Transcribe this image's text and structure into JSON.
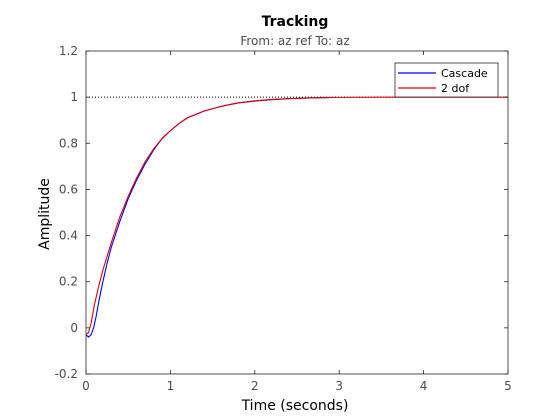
{
  "chart_data": {
    "type": "line",
    "title": "Tracking",
    "subtitle": "From: az ref  To: az",
    "xlabel": "Time (seconds)",
    "ylabel": "Amplitude",
    "xlim": [
      0,
      5
    ],
    "ylim": [
      -0.2,
      1.2
    ],
    "xticks": [
      0,
      1,
      2,
      3,
      4,
      5
    ],
    "yticks": [
      -0.2,
      0,
      0.2,
      0.4,
      0.6,
      0.8,
      1,
      1.2
    ],
    "grid": false,
    "legend_position": "top-right",
    "reference_line": {
      "y": 1,
      "style": "dotted",
      "color": "#000000"
    },
    "series": [
      {
        "name": "Cascade",
        "color": "#0000ff",
        "x": [
          0,
          0.03,
          0.06,
          0.09,
          0.12,
          0.16,
          0.2,
          0.25,
          0.3,
          0.4,
          0.5,
          0.6,
          0.7,
          0.8,
          0.9,
          1.0,
          1.1,
          1.2,
          1.4,
          1.6,
          1.8,
          2.0,
          2.2,
          2.4,
          2.6,
          2.9
        ],
        "values": [
          -0.03,
          -0.04,
          -0.03,
          0.0,
          0.05,
          0.13,
          0.2,
          0.28,
          0.35,
          0.46,
          0.56,
          0.64,
          0.71,
          0.77,
          0.82,
          0.855,
          0.885,
          0.91,
          0.94,
          0.96,
          0.975,
          0.983,
          0.989,
          0.993,
          0.996,
          0.998
        ]
      },
      {
        "name": "2 dof",
        "color": "#e00000",
        "x": [
          0,
          0.03,
          0.06,
          0.1,
          0.15,
          0.2,
          0.25,
          0.3,
          0.4,
          0.5,
          0.6,
          0.7,
          0.8,
          0.9,
          1.0,
          1.1,
          1.2,
          1.4,
          1.6,
          1.8,
          2.0,
          2.2,
          2.4,
          2.6,
          2.8,
          3.0,
          3.5,
          4.0,
          4.5,
          5.0
        ],
        "values": [
          -0.03,
          -0.02,
          0.02,
          0.1,
          0.18,
          0.25,
          0.31,
          0.37,
          0.48,
          0.57,
          0.65,
          0.72,
          0.775,
          0.82,
          0.855,
          0.885,
          0.91,
          0.94,
          0.96,
          0.975,
          0.984,
          0.99,
          0.994,
          0.996,
          0.998,
          0.999,
          1.0,
          1.0,
          1.0,
          1.0
        ]
      }
    ]
  }
}
